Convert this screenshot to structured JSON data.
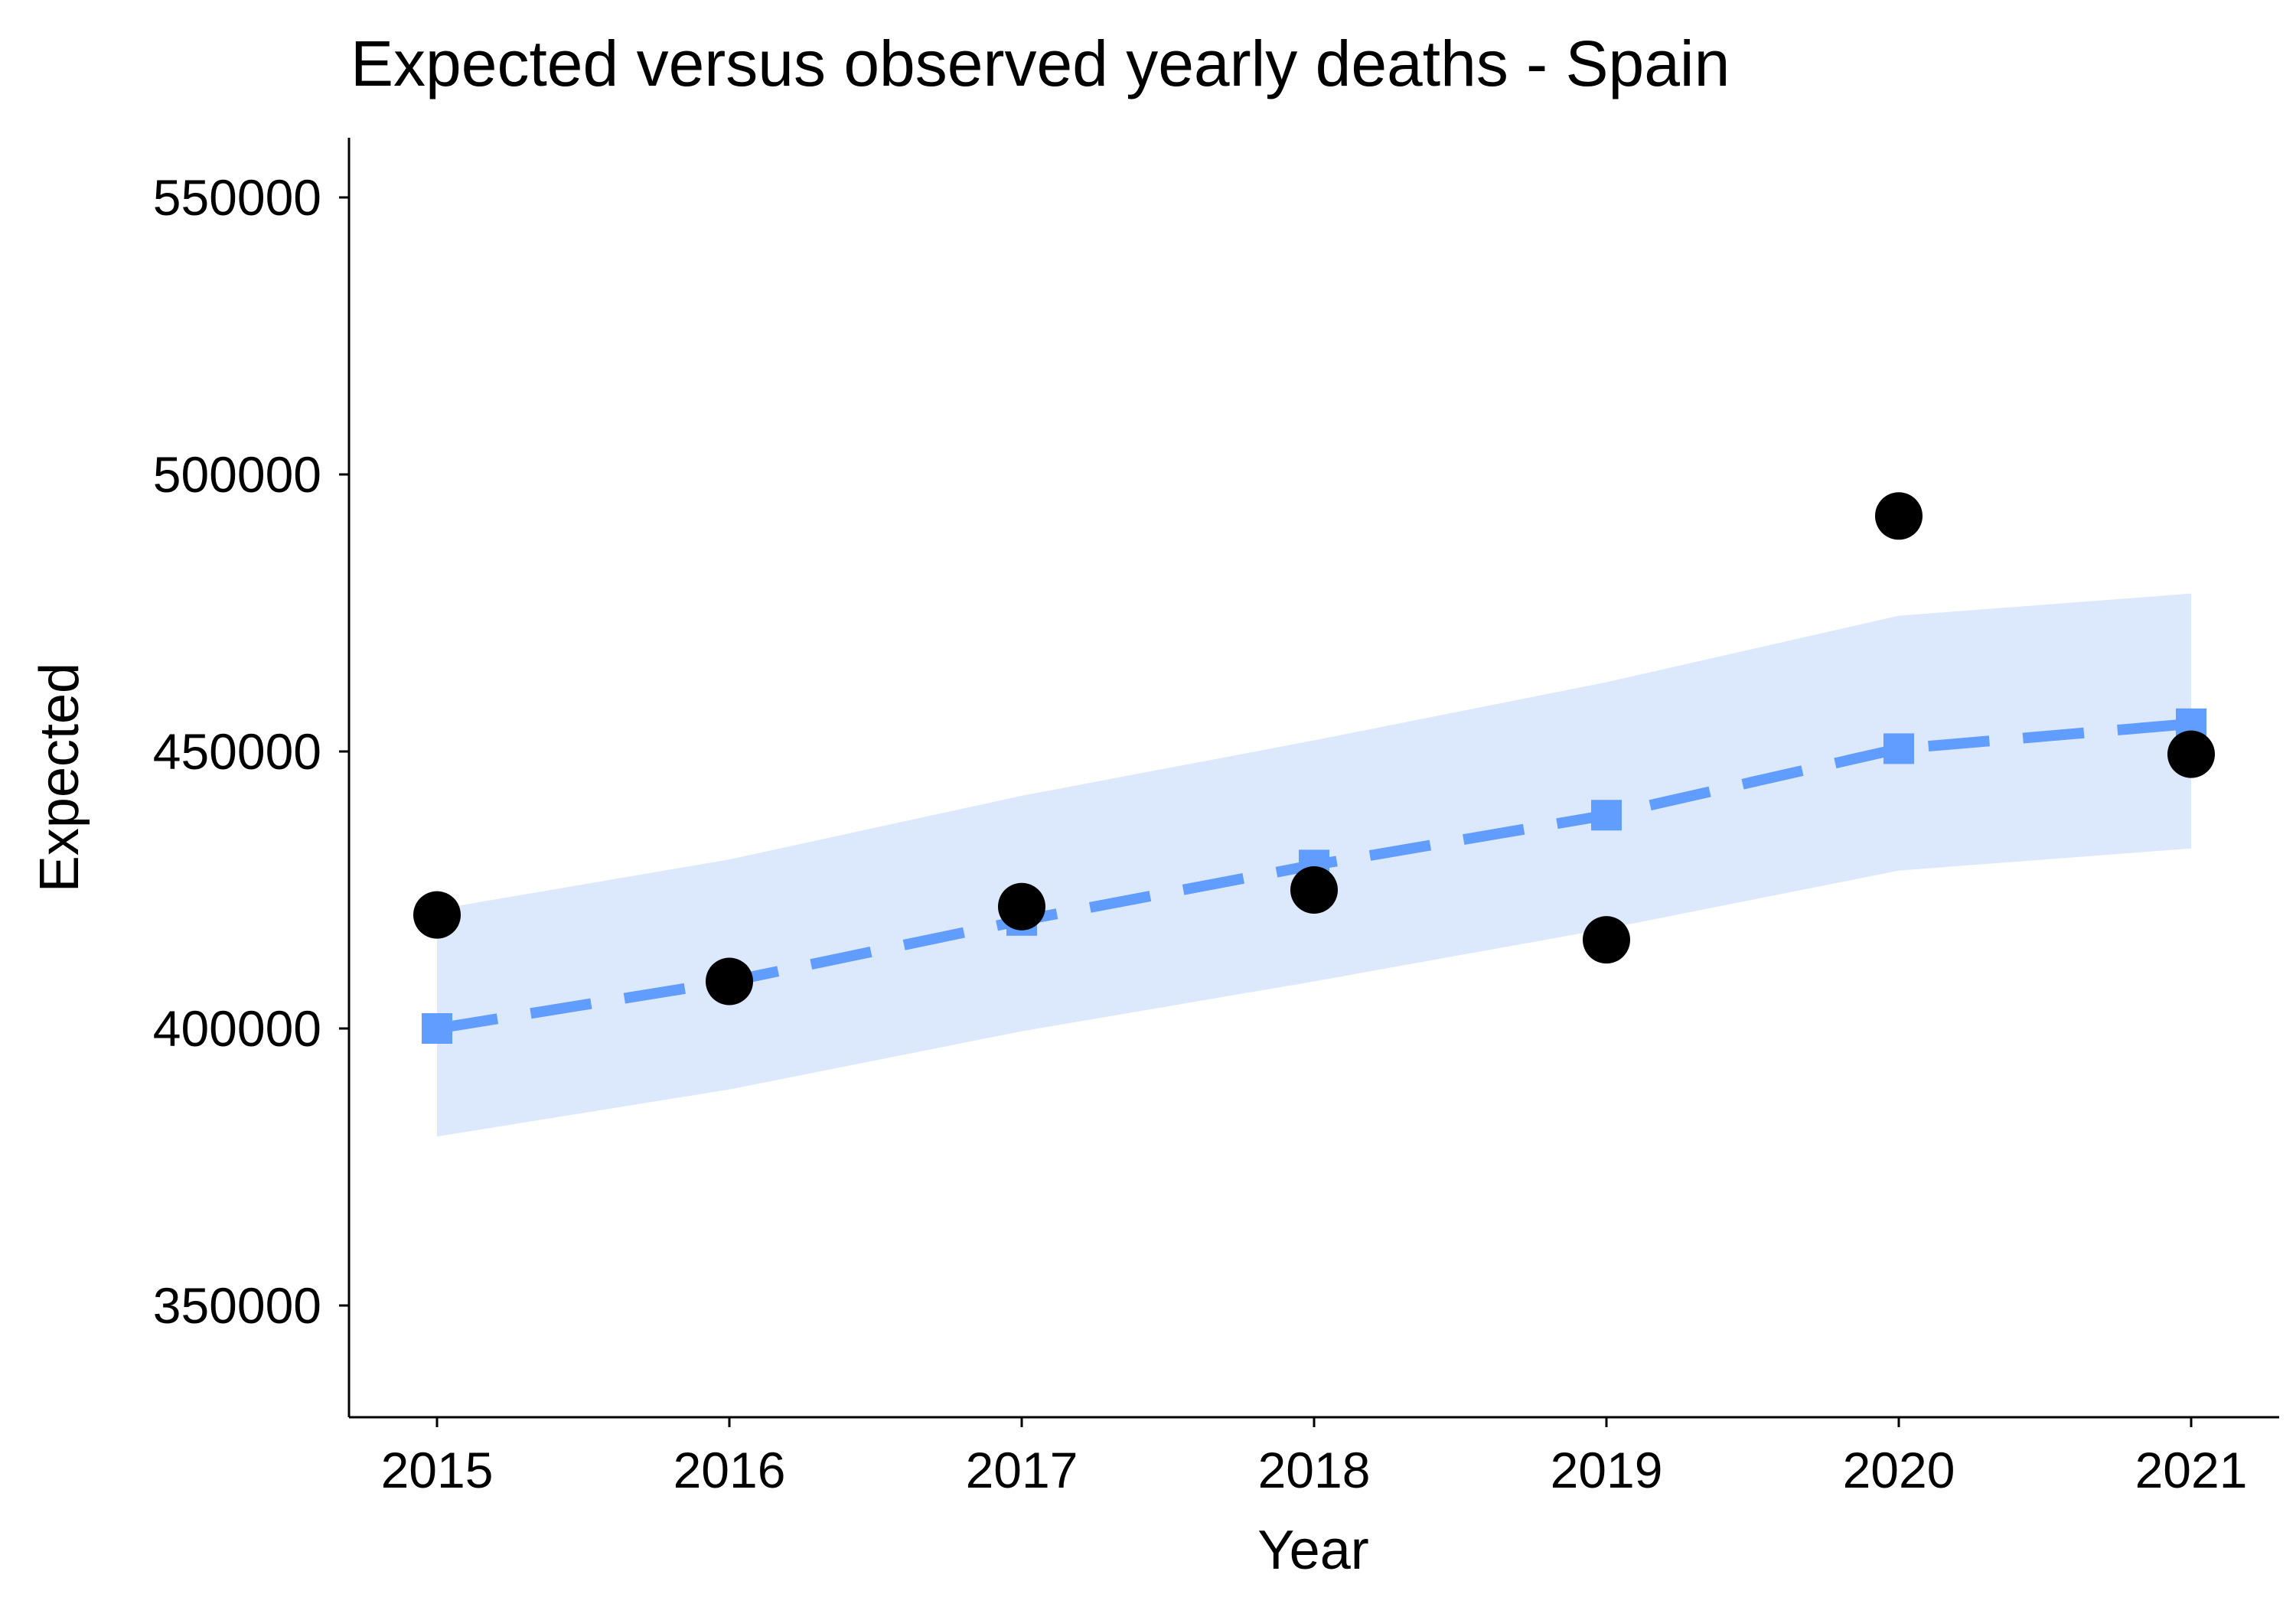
{
  "chart_data": {
    "type": "line",
    "title": "Expected versus observed yearly deaths - Spain",
    "xlabel": "Year",
    "ylabel": "Expected",
    "x": [
      2015,
      2016,
      2017,
      2018,
      2019,
      2020,
      2021
    ],
    "x_ticks": [
      "2015",
      "2016",
      "2017",
      "2018",
      "2019",
      "2020",
      "2021"
    ],
    "ylim": [
      330000,
      560000
    ],
    "y_ticks": [
      350000,
      400000,
      450000,
      500000,
      550000
    ],
    "y_tick_labels": [
      "350000",
      "400000",
      "450000",
      "500000",
      "550000"
    ],
    "grid": false,
    "series": [
      {
        "kind": "expected",
        "style": "dashed line with square markers",
        "color": "#619CFF",
        "values": [
          400000,
          408500,
          419500,
          429500,
          438500,
          450500,
          455000
        ]
      },
      {
        "kind": "expected-interval",
        "style": "ribbon",
        "color": "#DCE8FB",
        "lower": [
          380500,
          389000,
          399500,
          408500,
          418000,
          428500,
          432500
        ],
        "upper": [
          421500,
          430500,
          442000,
          452000,
          462500,
          474500,
          478500
        ]
      },
      {
        "kind": "observed",
        "style": "points",
        "color": "#000000",
        "values": [
          420500,
          408500,
          422000,
          425000,
          416000,
          492500,
          449500
        ]
      }
    ]
  }
}
